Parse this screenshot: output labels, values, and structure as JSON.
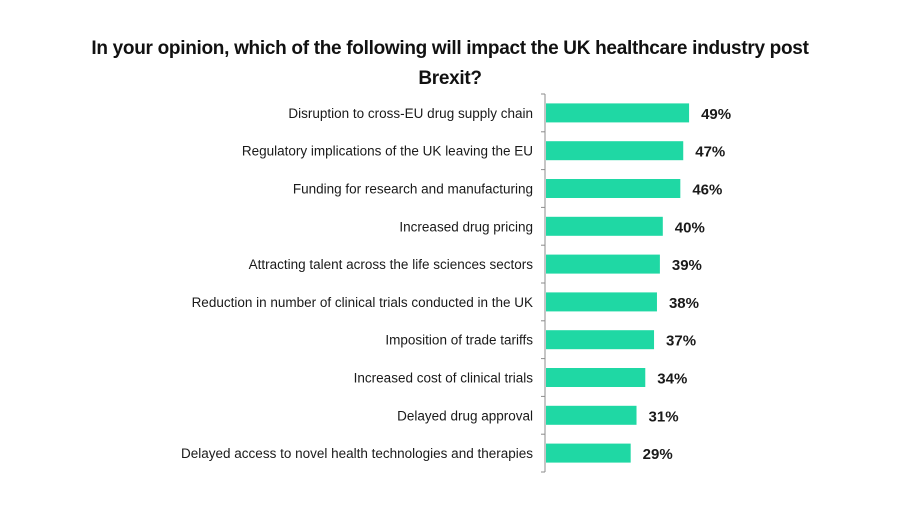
{
  "chart_data": {
    "type": "bar",
    "orientation": "horizontal",
    "title_line1": "In your opinion, which of the following will  impact the UK healthcare industry post",
    "title_line2": "Brexit?",
    "categories": [
      "Disruption to cross-EU drug supply chain",
      "Regulatory implications of the UK leaving the EU",
      "Funding for research and manufacturing",
      "Increased drug pricing",
      "Attracting talent across the life sciences sectors",
      "Reduction in number of clinical trials conducted in the UK",
      "Imposition of trade tariffs",
      "Increased cost of clinical trials",
      "Delayed drug approval",
      "Delayed access to novel health technologies and therapies"
    ],
    "values": [
      49,
      47,
      46,
      40,
      39,
      38,
      37,
      34,
      31,
      29
    ],
    "value_labels": [
      "49%",
      "47%",
      "46%",
      "40%",
      "39%",
      "38%",
      "37%",
      "34%",
      "31%",
      "29%"
    ],
    "unit": "%",
    "xlim": [
      0,
      100
    ],
    "grid": false,
    "legend": "none",
    "bar_color": "#1fd8a4",
    "axis_color": "#8c8c8c"
  }
}
